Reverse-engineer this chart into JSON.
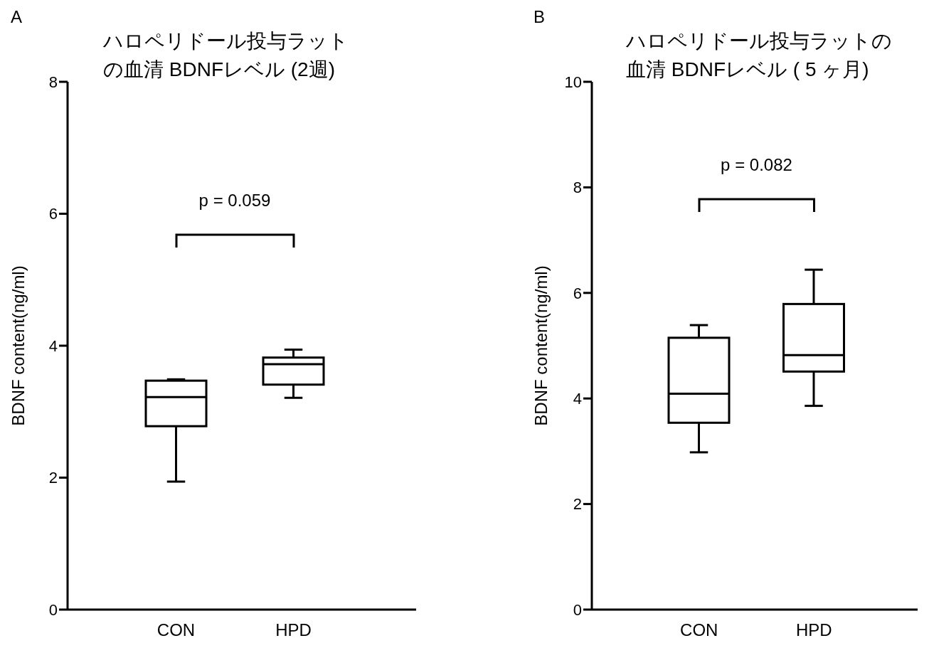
{
  "chart_data": [
    {
      "type": "box",
      "title": "ハロペリドール投与ラットの血清 BDNFレベル (2週)",
      "ylabel": "BDNF content(ng/ml)",
      "categories": [
        "CON",
        "HPD"
      ],
      "boxes": [
        {
          "low": 1.94,
          "q1": 2.78,
          "median": 3.22,
          "q3": 3.47,
          "high": 3.49
        },
        {
          "low": 3.21,
          "q1": 3.41,
          "median": 3.72,
          "q3": 3.82,
          "high": 3.94
        }
      ],
      "ylim": [
        0,
        8
      ],
      "yticks": [
        0,
        2,
        4,
        6,
        8
      ],
      "annotations": [
        "A",
        "p = 0.059"
      ]
    },
    {
      "type": "box",
      "title": "ハロペリドール投与ラットの血清 BDNFレベル ( 5 ヶ月)",
      "ylabel": "BDNF content(ng/ml)",
      "categories": [
        "CON",
        "HPD"
      ],
      "boxes": [
        {
          "low": 2.98,
          "q1": 3.54,
          "median": 4.09,
          "q3": 5.15,
          "high": 5.39
        },
        {
          "low": 3.86,
          "q1": 4.51,
          "median": 4.82,
          "q3": 5.79,
          "high": 6.44
        }
      ],
      "ylim": [
        0,
        10
      ],
      "yticks": [
        0,
        2,
        4,
        6,
        8,
        10
      ],
      "annotations": [
        "B",
        "p = 0.082"
      ]
    }
  ]
}
